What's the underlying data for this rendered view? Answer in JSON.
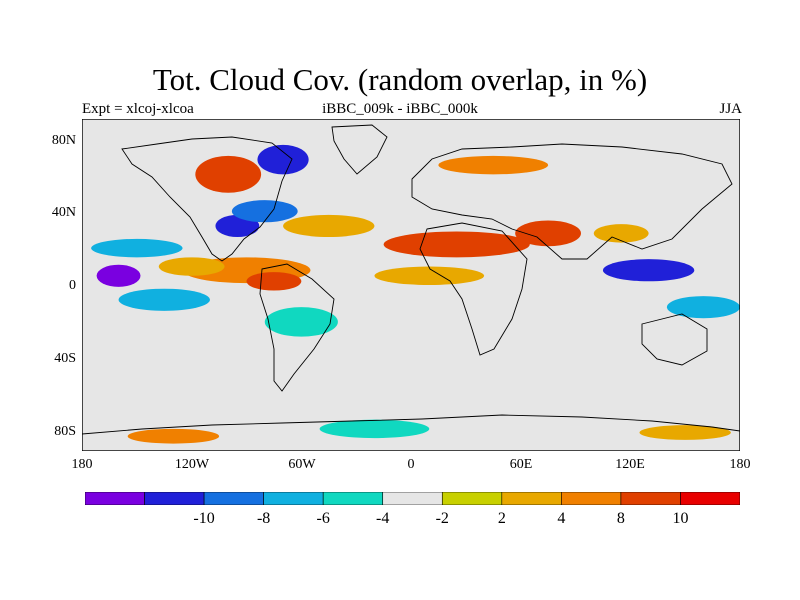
{
  "title": "Tot. Cloud Cov. (random overlap, in %)",
  "left_label": "Expt = xlcoj-xlcoa",
  "center_label": "iBBC_009k - iBBC_000k",
  "right_label": "JJA",
  "lat_labels": [
    "80N",
    "40N",
    "0",
    "40S",
    "80S"
  ],
  "lon_labels": [
    "180",
    "120W",
    "60W",
    "0",
    "60E",
    "120E",
    "180"
  ],
  "colorbar": {
    "colors": [
      "#7a00e0",
      "#2020d8",
      "#1570e0",
      "#10b0e0",
      "#10d8c0",
      "#e6e6e6",
      "#c8d000",
      "#e8a800",
      "#f08000",
      "#e04000",
      "#e80000"
    ],
    "labels": [
      "-10",
      "-8",
      "-6",
      "-4",
      "-2",
      "2",
      "4",
      "8",
      "10"
    ]
  },
  "chart_data": {
    "type": "heatmap",
    "title": "Tot. Cloud Cov. (random overlap, in %)",
    "subtitle": "iBBC_009k - iBBC_000k",
    "experiment": "Expt = xlcoj-xlcoa",
    "season": "JJA",
    "x_range_deg": [
      -180,
      180
    ],
    "y_range_deg": [
      -90,
      90
    ],
    "contour_levels": [
      -12,
      -10,
      -8,
      -6,
      -4,
      -2,
      2,
      4,
      8,
      10,
      12
    ],
    "anomaly_patches": [
      {
        "lon": -160,
        "lat": 5,
        "rlon": 12,
        "rlat": 6,
        "value": -11
      },
      {
        "lon": -135,
        "lat": -8,
        "rlon": 25,
        "rlat": 6,
        "value": -5
      },
      {
        "lon": -150,
        "lat": 20,
        "rlon": 25,
        "rlat": 5,
        "value": -6
      },
      {
        "lon": -90,
        "lat": 8,
        "rlon": 35,
        "rlat": 7,
        "value": 8
      },
      {
        "lon": -120,
        "lat": 10,
        "rlon": 18,
        "rlat": 5,
        "value": 5
      },
      {
        "lon": -75,
        "lat": 2,
        "rlon": 15,
        "rlat": 5,
        "value": 10
      },
      {
        "lon": -95,
        "lat": 32,
        "rlon": 12,
        "rlat": 6,
        "value": -10
      },
      {
        "lon": -80,
        "lat": 40,
        "rlon": 18,
        "rlat": 6,
        "value": -8
      },
      {
        "lon": -100,
        "lat": 60,
        "rlon": 18,
        "rlat": 10,
        "value": 11
      },
      {
        "lon": -70,
        "lat": 68,
        "rlon": 14,
        "rlat": 8,
        "value": -10
      },
      {
        "lon": -45,
        "lat": 32,
        "rlon": 25,
        "rlat": 6,
        "value": 7
      },
      {
        "lon": 25,
        "lat": 22,
        "rlon": 40,
        "rlat": 7,
        "value": 11
      },
      {
        "lon": 75,
        "lat": 28,
        "rlon": 18,
        "rlat": 7,
        "value": 11
      },
      {
        "lon": 10,
        "lat": 5,
        "rlon": 30,
        "rlat": 5,
        "value": 6
      },
      {
        "lon": 130,
        "lat": 8,
        "rlon": 25,
        "rlat": 6,
        "value": -9
      },
      {
        "lon": 115,
        "lat": 28,
        "rlon": 15,
        "rlat": 5,
        "value": 5
      },
      {
        "lon": 45,
        "lat": 65,
        "rlon": 30,
        "rlat": 5,
        "value": 9
      },
      {
        "lon": 160,
        "lat": -12,
        "rlon": 20,
        "rlat": 6,
        "value": -6
      },
      {
        "lon": -60,
        "lat": -20,
        "rlon": 20,
        "rlat": 8,
        "value": -4
      },
      {
        "lon": -130,
        "lat": -82,
        "rlon": 25,
        "rlat": 4,
        "value": 8
      },
      {
        "lon": -20,
        "lat": -78,
        "rlon": 30,
        "rlat": 5,
        "value": -4
      },
      {
        "lon": 150,
        "lat": -80,
        "rlon": 25,
        "rlat": 4,
        "value": 6
      }
    ]
  }
}
